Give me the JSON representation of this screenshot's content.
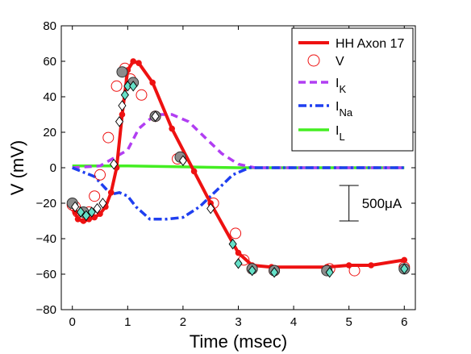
{
  "chart_data": {
    "type": "line",
    "xlabel": "Time (msec)",
    "ylabel": "V (mV)",
    "xlim": [
      -0.2,
      6.2
    ],
    "ylim": [
      -80,
      80
    ],
    "xticks": [
      "0",
      "1",
      "2",
      "3",
      "4",
      "5",
      "6"
    ],
    "yticks": [
      "−80",
      "−60",
      "−40",
      "−20",
      "0",
      "20",
      "40",
      "60",
      "80"
    ],
    "grid": false,
    "legend_position": "top-right",
    "legend": [
      {
        "label": "HH Axon 17",
        "sub": "",
        "style": "solid-red-dots"
      },
      {
        "label": "V",
        "sub": "",
        "style": "open-circle"
      },
      {
        "label": "I",
        "sub": "K",
        "style": "dashed-purple"
      },
      {
        "label": "I",
        "sub": "Na",
        "style": "dashdot-blue"
      },
      {
        "label": "I",
        "sub": "L",
        "style": "solid-green"
      }
    ],
    "scale_bar": {
      "label": "500μA",
      "x": 5.0,
      "y_top": -10,
      "y_bottom": -30
    },
    "colors": {
      "hh": "#ee1111",
      "v_circle": "#ee1111",
      "ik": "#b13ef2",
      "ina": "#1f3ff0",
      "il": "#44ee22",
      "grey_marker": "#8c8c8c",
      "diamond_fill": "#66e0c8"
    },
    "series": [
      {
        "name": "HH Axon 17",
        "kind": "line-with-dots",
        "x": [
          0,
          0.05,
          0.1,
          0.2,
          0.3,
          0.4,
          0.5,
          0.6,
          0.7,
          0.8,
          0.9,
          1.0,
          1.1,
          1.2,
          1.45,
          1.8,
          2.2,
          2.5,
          3.0,
          3.25,
          3.6,
          4.6,
          5.0,
          5.4,
          6.0
        ],
        "y": [
          -20,
          -25,
          -29,
          -30,
          -29,
          -28,
          -26,
          -22,
          -14,
          0,
          30,
          55,
          60,
          59,
          48,
          22,
          -2,
          -20,
          -48,
          -55,
          -56,
          -56,
          -55,
          -55,
          -52
        ]
      },
      {
        "name": "V",
        "kind": "open-circles",
        "x": [
          0,
          0.05,
          0.1,
          0.2,
          0.3,
          0.4,
          0.5,
          0.65,
          0.8,
          0.95,
          1.05,
          1.25,
          1.5,
          1.9,
          2.55,
          2.95,
          3.1,
          3.25,
          3.65,
          4.65,
          5.1,
          6.0
        ],
        "y": [
          -21,
          -22,
          -25,
          -28,
          -25,
          -16,
          -4,
          17,
          46,
          56,
          50,
          41,
          29,
          5,
          -20,
          -37,
          -52,
          -57,
          -58,
          -57,
          -58,
          -56
        ]
      },
      {
        "name": "I_K",
        "kind": "dashed",
        "x": [
          0,
          0.5,
          1.0,
          1.2,
          1.5,
          1.8,
          2.1,
          2.4,
          2.7,
          3.0,
          3.3,
          6.0
        ],
        "y": [
          0,
          1,
          10,
          22,
          30,
          30,
          26,
          17,
          8,
          2,
          0,
          0
        ]
      },
      {
        "name": "I_Na",
        "kind": "dashdot",
        "x": [
          0,
          0.4,
          0.7,
          0.85,
          1.0,
          1.15,
          1.4,
          1.7,
          2.0,
          2.3,
          2.6,
          2.9,
          3.2,
          6.0
        ],
        "y": [
          0,
          -5,
          -15,
          -14,
          -16,
          -22,
          -29,
          -29,
          -28,
          -22,
          -13,
          -4,
          0,
          0
        ]
      },
      {
        "name": "I_L",
        "kind": "solid",
        "x": [
          0,
          1.0,
          2.0,
          3.0,
          6.0
        ],
        "y": [
          1,
          1,
          0.5,
          0,
          0
        ]
      },
      {
        "name": "grey circles",
        "kind": "grey-circles",
        "x": [
          0,
          0.2,
          0.9,
          1.1,
          1.5,
          1.95,
          3.25,
          3.65,
          4.6,
          6.0
        ],
        "y": [
          -20,
          -25,
          54,
          48,
          29,
          6,
          -57,
          -58,
          -58,
          -57
        ]
      },
      {
        "name": "diamonds",
        "kind": "diamonds",
        "x": [
          0.05,
          0.15,
          0.25,
          0.35,
          0.45,
          0.55,
          0.75,
          0.85,
          0.9,
          0.95,
          1.0,
          1.1,
          1.5,
          2.0,
          2.5,
          2.9,
          3.0,
          3.25,
          3.65,
          4.65,
          6.0
        ],
        "y": [
          -22,
          -25,
          -27,
          -25,
          -23,
          -20,
          2,
          26,
          35,
          41,
          46,
          46,
          29,
          4,
          -23,
          -43,
          -54,
          -58,
          -59,
          -59,
          -57
        ]
      }
    ]
  }
}
